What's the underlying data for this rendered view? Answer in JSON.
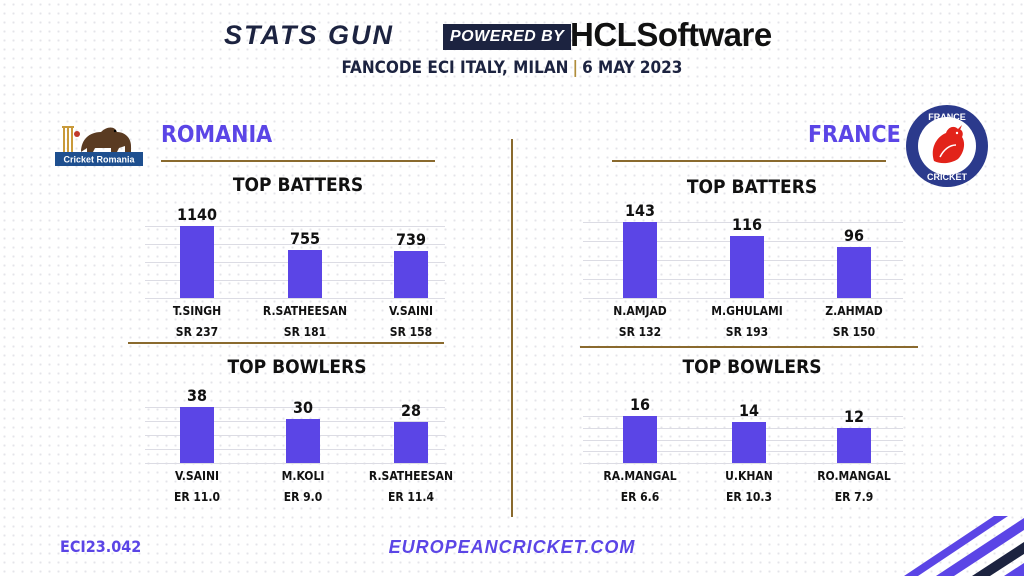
{
  "header": {
    "brand_left": "STATS GUN",
    "powered_by": "POWERED BY",
    "brand_right": "HCLSoftware",
    "event": "FANCODE ECI ITALY, MILAN",
    "date": "6 MAY 2023"
  },
  "teams": [
    {
      "name": "ROMANIA",
      "logo_text": "Cricket Romania",
      "batters_title": "TOP BATTERS",
      "bowlers_title": "TOP BOWLERS"
    },
    {
      "name": "FRANCE",
      "logo_text_top": "FRANCE",
      "logo_text_bottom": "CRICKET",
      "batters_title": "TOP BATTERS",
      "bowlers_title": "TOP BOWLERS"
    }
  ],
  "chart_data": [
    {
      "type": "bar",
      "team": "ROMANIA",
      "title": "TOP BATTERS",
      "categories": [
        "T.SINGH",
        "R.SATHEESAN",
        "V.SAINI"
      ],
      "values": [
        1140,
        755,
        739
      ],
      "value_labels": [
        "1140",
        "755",
        "739"
      ],
      "secondary_labels": [
        "SR 237",
        "SR 181",
        "SR 158"
      ],
      "ylim": [
        0,
        1140
      ]
    },
    {
      "type": "bar",
      "team": "ROMANIA",
      "title": "TOP BOWLERS",
      "categories": [
        "V.SAINI",
        "M.KOLI",
        "R.SATHEESAN"
      ],
      "values": [
        38,
        30,
        28
      ],
      "value_labels": [
        "38",
        "30",
        "28"
      ],
      "secondary_labels": [
        "ER 11.0",
        "ER 9.0",
        "ER 11.4"
      ],
      "ylim": [
        0,
        38
      ]
    },
    {
      "type": "bar",
      "team": "FRANCE",
      "title": "TOP BATTERS",
      "categories": [
        "N.AMJAD",
        "M.GHULAMI",
        "Z.AHMAD"
      ],
      "values": [
        143,
        116,
        96
      ],
      "value_labels": [
        "143",
        "116",
        "96"
      ],
      "secondary_labels": [
        "SR 132",
        "SR 193",
        "SR 150"
      ],
      "ylim": [
        0,
        143
      ]
    },
    {
      "type": "bar",
      "team": "FRANCE",
      "title": "TOP BOWLERS",
      "categories": [
        "RA.MANGAL",
        "U.KHAN",
        "RO.MANGAL"
      ],
      "values": [
        16,
        14,
        12
      ],
      "value_labels": [
        "16",
        "14",
        "12"
      ],
      "secondary_labels": [
        "ER 6.6",
        "ER 10.3",
        "ER 7.9"
      ],
      "ylim": [
        0,
        16
      ]
    }
  ],
  "footer": {
    "code": "ECI23.042",
    "website": "EUROPEANCRICKET.COM"
  },
  "colors": {
    "bar": "#5b45e6",
    "accent_gold": "#8a6a2e",
    "navy": "#1c2340"
  }
}
